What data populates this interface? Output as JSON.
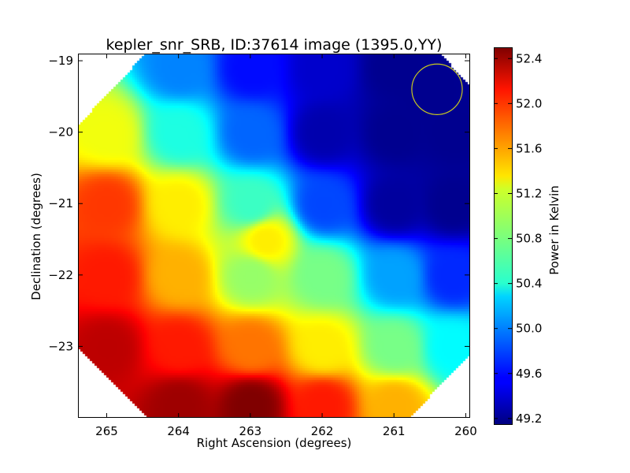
{
  "chart_data": {
    "type": "heatmap",
    "title": "kepler_snr_SRB, ID:37614 image (1395.0,YY)",
    "xlabel": "Right Ascension (degrees)",
    "ylabel": "Declination (degrees)",
    "xlim": [
      265.4,
      259.95
    ],
    "ylim": [
      -24.0,
      -18.9
    ],
    "x_reversed": true,
    "x_ticks": [
      265,
      264,
      263,
      262,
      261,
      260
    ],
    "y_ticks": [
      -19,
      -20,
      -21,
      -22,
      -23
    ],
    "x_tick_labels": [
      "265",
      "264",
      "263",
      "262",
      "261",
      "260"
    ],
    "y_tick_labels": [
      "−19",
      "−20",
      "−21",
      "−22",
      "−23"
    ],
    "colorbar": {
      "label": "Power in Kelvin",
      "range": [
        49.15,
        52.5
      ],
      "colormap": "jet",
      "ticks": [
        49.2,
        49.6,
        50.0,
        50.4,
        50.8,
        51.2,
        51.6,
        52.0,
        52.4
      ],
      "tick_labels": [
        "49.2",
        "49.6",
        "50.0",
        "50.4",
        "50.8",
        "51.2",
        "51.6",
        "52.0",
        "52.4"
      ]
    },
    "field_shape": "octagon",
    "field_points": [
      {
        "ra": 264.0,
        "dec": -19.1,
        "power": 50.0
      },
      {
        "ra": 263.0,
        "dec": -19.1,
        "power": 49.6
      },
      {
        "ra": 262.0,
        "dec": -19.1,
        "power": 49.4
      },
      {
        "ra": 261.0,
        "dec": -19.1,
        "power": 49.2
      },
      {
        "ra": 260.5,
        "dec": -19.4,
        "power": 49.2
      },
      {
        "ra": 265.0,
        "dec": -20.0,
        "power": 51.2
      },
      {
        "ra": 264.0,
        "dec": -20.0,
        "power": 50.5
      },
      {
        "ra": 263.0,
        "dec": -20.0,
        "power": 49.9
      },
      {
        "ra": 262.0,
        "dec": -20.0,
        "power": 49.3
      },
      {
        "ra": 261.0,
        "dec": -20.0,
        "power": 49.2
      },
      {
        "ra": 260.2,
        "dec": -20.0,
        "power": 49.2
      },
      {
        "ra": 265.0,
        "dec": -21.0,
        "power": 51.9
      },
      {
        "ra": 264.0,
        "dec": -21.0,
        "power": 51.3
      },
      {
        "ra": 263.0,
        "dec": -21.0,
        "power": 50.6
      },
      {
        "ra": 262.0,
        "dec": -21.0,
        "power": 49.8
      },
      {
        "ra": 261.0,
        "dec": -21.0,
        "power": 49.25
      },
      {
        "ra": 260.2,
        "dec": -21.0,
        "power": 49.2
      },
      {
        "ra": 265.0,
        "dec": -22.0,
        "power": 52.0
      },
      {
        "ra": 264.0,
        "dec": -22.0,
        "power": 51.5
      },
      {
        "ra": 263.0,
        "dec": -22.0,
        "power": 50.9
      },
      {
        "ra": 262.0,
        "dec": -22.0,
        "power": 50.8
      },
      {
        "ra": 261.0,
        "dec": -22.0,
        "power": 50.1
      },
      {
        "ra": 260.2,
        "dec": -22.0,
        "power": 49.7
      },
      {
        "ra": 265.0,
        "dec": -23.0,
        "power": 52.3
      },
      {
        "ra": 264.0,
        "dec": -23.0,
        "power": 52.0
      },
      {
        "ra": 263.0,
        "dec": -23.0,
        "power": 51.7
      },
      {
        "ra": 262.0,
        "dec": -23.0,
        "power": 51.3
      },
      {
        "ra": 261.0,
        "dec": -23.0,
        "power": 50.8
      },
      {
        "ra": 260.2,
        "dec": -23.0,
        "power": 50.4
      },
      {
        "ra": 264.0,
        "dec": -23.8,
        "power": 52.4
      },
      {
        "ra": 263.0,
        "dec": -23.8,
        "power": 52.5
      },
      {
        "ra": 262.0,
        "dec": -23.8,
        "power": 52.0
      },
      {
        "ra": 261.0,
        "dec": -23.8,
        "power": 51.5
      },
      {
        "ra": 262.8,
        "dec": -21.5,
        "power": 51.3
      }
    ],
    "annotation": {
      "type": "circle",
      "ra": 260.4,
      "dec": -19.4,
      "radius_deg": 0.37,
      "color": "#c8c820"
    }
  },
  "colors": {
    "annotation": "#c8c820",
    "frame": "#000000"
  }
}
